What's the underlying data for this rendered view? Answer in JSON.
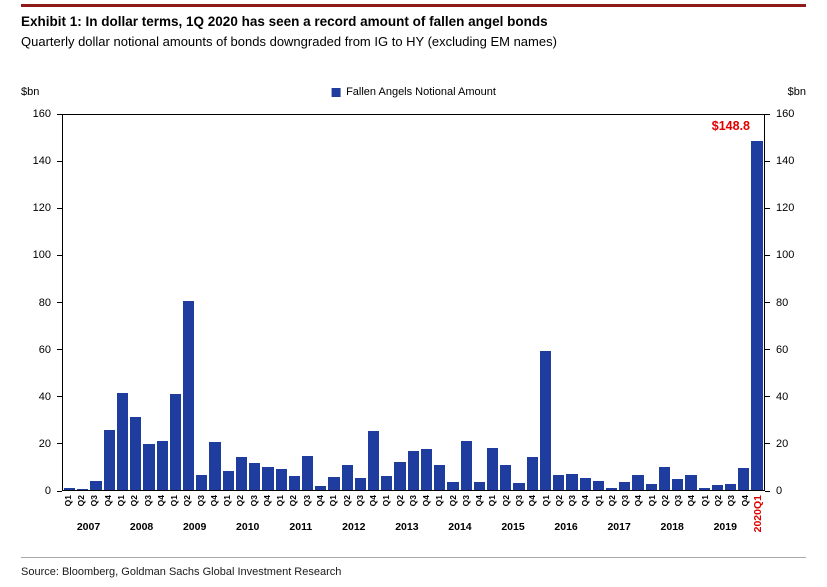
{
  "colors": {
    "bar": "#1f3d9e",
    "highlight_red": "#e00000",
    "top_rule": "#8e1b1b"
  },
  "header": {
    "title": "Exhibit 1: In dollar terms, 1Q 2020 has seen a record amount of fallen angel bonds",
    "subtitle": "Quarterly dollar notional amounts of bonds downgraded from IG to HY (excluding EM names)"
  },
  "legend": {
    "label": "Fallen Angels Notional Amount"
  },
  "axes": {
    "left_unit": "$bn",
    "right_unit": "$bn"
  },
  "annotation": {
    "text": "$148.8"
  },
  "footer": {
    "source": "Source: Bloomberg, Goldman Sachs Global Investment Research"
  },
  "chart_data": {
    "type": "bar",
    "title": "Exhibit 1: In dollar terms, 1Q 2020 has seen a record amount of fallen angel bonds",
    "subtitle": "Quarterly dollar notional amounts of bonds downgraded from IG to HY (excluding EM names)",
    "ylabel": "$bn",
    "ylim": [
      0,
      160
    ],
    "yticks": [
      0,
      20,
      40,
      60,
      80,
      100,
      120,
      140,
      160
    ],
    "legend_entries": [
      "Fallen Angels Notional Amount"
    ],
    "legend_position": "top-center",
    "grid": false,
    "data_label": {
      "text": "$148.8",
      "point": "2020-Q1"
    },
    "years": [
      "2007",
      "2008",
      "2009",
      "2010",
      "2011",
      "2012",
      "2013",
      "2014",
      "2015",
      "2016",
      "2017",
      "2018",
      "2019"
    ],
    "points": [
      {
        "q": "Q1",
        "year": "2007",
        "value": 1.0
      },
      {
        "q": "Q2",
        "year": "2007",
        "value": 0.4
      },
      {
        "q": "Q3",
        "year": "2007",
        "value": 4.0
      },
      {
        "q": "Q4",
        "year": "2007",
        "value": 25.5
      },
      {
        "q": "Q1",
        "year": "2008",
        "value": 41.5
      },
      {
        "q": "Q2",
        "year": "2008",
        "value": 31.0
      },
      {
        "q": "Q3",
        "year": "2008",
        "value": 19.5
      },
      {
        "q": "Q4",
        "year": "2008",
        "value": 21.0
      },
      {
        "q": "Q1",
        "year": "2009",
        "value": 41.0
      },
      {
        "q": "Q2",
        "year": "2009",
        "value": 80.5
      },
      {
        "q": "Q3",
        "year": "2009",
        "value": 6.5
      },
      {
        "q": "Q4",
        "year": "2009",
        "value": 20.5
      },
      {
        "q": "Q1",
        "year": "2010",
        "value": 8.0
      },
      {
        "q": "Q2",
        "year": "2010",
        "value": 14.0
      },
      {
        "q": "Q3",
        "year": "2010",
        "value": 11.5
      },
      {
        "q": "Q4",
        "year": "2010",
        "value": 10.0
      },
      {
        "q": "Q1",
        "year": "2011",
        "value": 9.0
      },
      {
        "q": "Q2",
        "year": "2011",
        "value": 6.0
      },
      {
        "q": "Q3",
        "year": "2011",
        "value": 14.5
      },
      {
        "q": "Q4",
        "year": "2011",
        "value": 1.5
      },
      {
        "q": "Q1",
        "year": "2012",
        "value": 5.5
      },
      {
        "q": "Q2",
        "year": "2012",
        "value": 10.5
      },
      {
        "q": "Q3",
        "year": "2012",
        "value": 5.0
      },
      {
        "q": "Q4",
        "year": "2012",
        "value": 25.0
      },
      {
        "q": "Q1",
        "year": "2013",
        "value": 6.0
      },
      {
        "q": "Q2",
        "year": "2013",
        "value": 12.0
      },
      {
        "q": "Q3",
        "year": "2013",
        "value": 16.5
      },
      {
        "q": "Q4",
        "year": "2013",
        "value": 17.5
      },
      {
        "q": "Q1",
        "year": "2014",
        "value": 10.5
      },
      {
        "q": "Q2",
        "year": "2014",
        "value": 3.5
      },
      {
        "q": "Q3",
        "year": "2014",
        "value": 21.0
      },
      {
        "q": "Q4",
        "year": "2014",
        "value": 3.5
      },
      {
        "q": "Q1",
        "year": "2015",
        "value": 18.0
      },
      {
        "q": "Q2",
        "year": "2015",
        "value": 10.5
      },
      {
        "q": "Q3",
        "year": "2015",
        "value": 3.0
      },
      {
        "q": "Q4",
        "year": "2015",
        "value": 14.0
      },
      {
        "q": "Q1",
        "year": "2016",
        "value": 59.5
      },
      {
        "q": "Q2",
        "year": "2016",
        "value": 6.5
      },
      {
        "q": "Q3",
        "year": "2016",
        "value": 7.0
      },
      {
        "q": "Q4",
        "year": "2016",
        "value": 5.0
      },
      {
        "q": "Q1",
        "year": "2017",
        "value": 4.0
      },
      {
        "q": "Q2",
        "year": "2017",
        "value": 1.0
      },
      {
        "q": "Q3",
        "year": "2017",
        "value": 3.5
      },
      {
        "q": "Q4",
        "year": "2017",
        "value": 6.5
      },
      {
        "q": "Q1",
        "year": "2018",
        "value": 2.5
      },
      {
        "q": "Q2",
        "year": "2018",
        "value": 10.0
      },
      {
        "q": "Q3",
        "year": "2018",
        "value": 4.5
      },
      {
        "q": "Q4",
        "year": "2018",
        "value": 6.5
      },
      {
        "q": "Q1",
        "year": "2019",
        "value": 1.0
      },
      {
        "q": "Q2",
        "year": "2019",
        "value": 2.0
      },
      {
        "q": "Q3",
        "year": "2019",
        "value": 2.5
      },
      {
        "q": "Q4",
        "year": "2019",
        "value": 9.5
      },
      {
        "q": "2020Q1",
        "year": "2020",
        "value": 148.8,
        "highlight": true
      }
    ]
  }
}
